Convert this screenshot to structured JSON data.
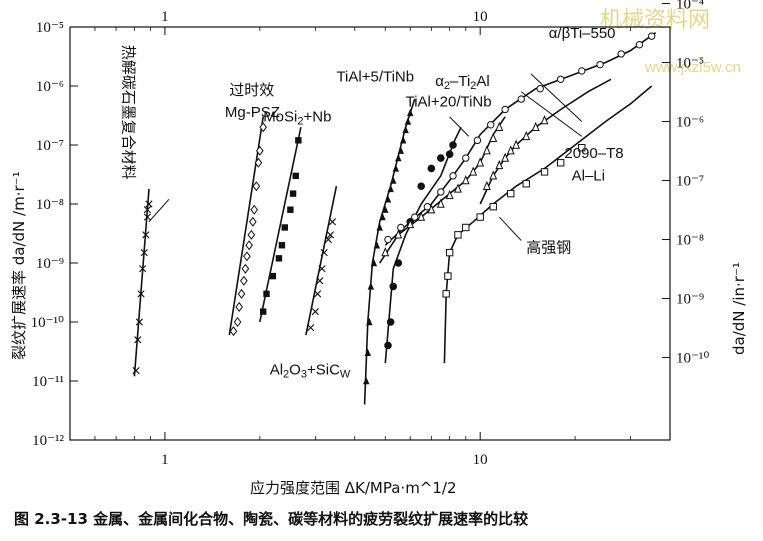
{
  "caption": {
    "number": "图 2.3-13",
    "text": "金属、金属间化合物、陶瓷、碳等材料的疲劳裂纹扩展速率的比较"
  },
  "watermark": {
    "line1": "机械资料网",
    "line2": "www.jxzl5w.cn"
  },
  "chart_data": {
    "type": "scatter",
    "xscale": "log",
    "yscale": "log",
    "xlim": [
      0.5,
      40
    ],
    "ylim": [
      1e-12,
      1e-05
    ],
    "xlabel": "应力强度范围 ΔK/MPa·m^1/2",
    "ylabel": "裂纹扩展速率 da/dN /m·r⁻¹",
    "ylabel_right": "da/dN /in·r⁻¹",
    "x_ticks_bottom": [
      {
        "v": 1,
        "label": "1"
      },
      {
        "v": 10,
        "label": "10"
      }
    ],
    "x_ticks_top": [
      {
        "v": 1,
        "label": "1"
      },
      {
        "v": 10,
        "label": "10"
      }
    ],
    "y_ticks_left": [
      {
        "v": 1e-12,
        "label": "10⁻¹²"
      },
      {
        "v": 1e-11,
        "label": "10⁻¹¹"
      },
      {
        "v": 1e-10,
        "label": "10⁻¹⁰"
      },
      {
        "v": 1e-09,
        "label": "10⁻⁹"
      },
      {
        "v": 1e-08,
        "label": "10⁻⁸"
      },
      {
        "v": 1e-07,
        "label": "10⁻⁷"
      },
      {
        "v": 1e-06,
        "label": "10⁻⁶"
      },
      {
        "v": 1e-05,
        "label": "10⁻⁵"
      }
    ],
    "y_ticks_right": [
      {
        "v": 2.5e-05,
        "label": "10⁻⁴"
      },
      {
        "v": 2.5e-06,
        "label": "10⁻⁵"
      },
      {
        "v": 2.5e-07,
        "label": "10⁻⁶"
      },
      {
        "v": 2.5e-08,
        "label": "10⁻⁷"
      },
      {
        "v": 2.5e-09,
        "label": "10⁻⁸"
      },
      {
        "v": 2.5e-10,
        "label": "10⁻⁹"
      },
      {
        "v": 2.5e-11,
        "label": "10⁻¹⁰"
      }
    ],
    "series": [
      {
        "name": "热解碳石墨复合材料",
        "marker": "x",
        "line": [
          [
            0.8,
            1.2e-11
          ],
          [
            0.89,
            1.8e-08
          ]
        ],
        "points": [
          [
            0.81,
            1.5e-11
          ],
          [
            0.82,
            5e-11
          ],
          [
            0.83,
            1e-10
          ],
          [
            0.84,
            3e-10
          ],
          [
            0.85,
            8e-10
          ],
          [
            0.86,
            1.5e-09
          ],
          [
            0.87,
            3e-09
          ],
          [
            0.88,
            6e-09
          ],
          [
            0.88,
            8e-09
          ],
          [
            0.89,
            1e-08
          ]
        ]
      },
      {
        "name": "过时效 Mg-PSZ",
        "marker": "diamond",
        "line": [
          [
            1.6,
            6e-11
          ],
          [
            2.05,
            3e-07
          ]
        ],
        "points": [
          [
            1.65,
            7e-11
          ],
          [
            1.7,
            1e-10
          ],
          [
            1.72,
            1.8e-10
          ],
          [
            1.75,
            3e-10
          ],
          [
            1.78,
            5e-10
          ],
          [
            1.8,
            8e-10
          ],
          [
            1.82,
            1.3e-09
          ],
          [
            1.85,
            2e-09
          ],
          [
            1.88,
            3e-09
          ],
          [
            1.9,
            5e-09
          ],
          [
            1.92,
            8e-09
          ],
          [
            1.95,
            2e-08
          ],
          [
            1.98,
            5e-08
          ],
          [
            2.0,
            8e-08
          ],
          [
            2.05,
            2e-07
          ]
        ]
      },
      {
        "name": "MoSi2+Nb",
        "marker": "square-filled",
        "line": [
          [
            2.0,
            1e-10
          ],
          [
            2.7,
            2e-07
          ]
        ],
        "points": [
          [
            2.05,
            1.5e-10
          ],
          [
            2.1,
            3e-10
          ],
          [
            2.2,
            6e-10
          ],
          [
            2.3,
            1.2e-09
          ],
          [
            2.35,
            2e-09
          ],
          [
            2.4,
            4e-09
          ],
          [
            2.5,
            8e-09
          ],
          [
            2.55,
            1.5e-08
          ],
          [
            2.6,
            3e-08
          ],
          [
            2.65,
            1.2e-07
          ]
        ]
      },
      {
        "name": "Al2O3+SiCW",
        "marker": "x",
        "line": [
          [
            2.8,
            6e-11
          ],
          [
            3.5,
            2e-08
          ]
        ],
        "points": [
          [
            2.9,
            8e-11
          ],
          [
            3.0,
            1.5e-10
          ],
          [
            3.05,
            3e-10
          ],
          [
            3.1,
            5e-10
          ],
          [
            3.15,
            8e-10
          ],
          [
            3.2,
            1.5e-09
          ],
          [
            3.3,
            2.5e-09
          ],
          [
            3.35,
            3e-09
          ],
          [
            3.4,
            5e-09
          ]
        ]
      },
      {
        "name": "TiAl+5/TiNb",
        "marker": "triangle-filled",
        "line": [
          [
            4.3,
            4e-12
          ],
          [
            4.4,
            1e-10
          ],
          [
            4.55,
            1e-09
          ],
          [
            4.8,
            5e-09
          ],
          [
            5.2,
            2e-08
          ],
          [
            5.8,
            2e-07
          ],
          [
            6.2,
            6e-07
          ]
        ],
        "points": [
          [
            4.35,
            1e-11
          ],
          [
            4.4,
            3e-11
          ],
          [
            4.45,
            1e-10
          ],
          [
            4.5,
            4e-10
          ],
          [
            4.6,
            1e-09
          ],
          [
            4.7,
            2e-09
          ],
          [
            4.8,
            4e-09
          ],
          [
            4.9,
            6e-09
          ],
          [
            5.0,
            8e-09
          ],
          [
            5.1,
            1.2e-08
          ],
          [
            5.2,
            1.8e-08
          ],
          [
            5.3,
            2.5e-08
          ],
          [
            5.4,
            4e-08
          ],
          [
            5.5,
            6e-08
          ],
          [
            5.6,
            8e-08
          ],
          [
            5.7,
            1.2e-07
          ],
          [
            5.8,
            1.8e-07
          ],
          [
            5.9,
            2.5e-07
          ],
          [
            6.0,
            3.5e-07
          ]
        ]
      },
      {
        "name": "TiAl+20/TiNb",
        "marker": "circle-filled",
        "line": [
          [
            5.0,
            2e-11
          ],
          [
            5.3,
            8e-10
          ],
          [
            5.8,
            3e-09
          ],
          [
            6.5,
            1e-08
          ],
          [
            7.5,
            3e-08
          ],
          [
            8.3,
            1.2e-07
          ],
          [
            8.7,
            2e-07
          ]
        ],
        "points": [
          [
            5.1,
            4e-11
          ],
          [
            5.2,
            1e-10
          ],
          [
            5.3,
            4e-10
          ],
          [
            5.5,
            1e-09
          ],
          [
            6.0,
            5e-09
          ],
          [
            6.5,
            2e-08
          ],
          [
            7.0,
            4e-08
          ],
          [
            7.5,
            6e-08
          ],
          [
            8.0,
            7e-08
          ],
          [
            8.2,
            1e-07
          ]
        ]
      },
      {
        "name": "α2-Ti2Al",
        "marker": "triangle-open",
        "line": [
          [
            4.8,
            1e-09
          ],
          [
            5.5,
            3e-09
          ],
          [
            6.5,
            6e-09
          ],
          [
            8.0,
            1.5e-08
          ],
          [
            9.0,
            2.5e-08
          ],
          [
            10.0,
            5e-08
          ],
          [
            11.0,
            1.5e-07
          ],
          [
            12.0,
            3e-07
          ]
        ],
        "points": [
          [
            5.0,
            1.5e-09
          ],
          [
            5.5,
            3e-09
          ],
          [
            6.0,
            4.5e-09
          ],
          [
            6.5,
            6e-09
          ],
          [
            7.0,
            8e-09
          ],
          [
            7.5,
            1e-08
          ],
          [
            8.0,
            1.4e-08
          ],
          [
            8.5,
            1.8e-08
          ],
          [
            9.0,
            2.5e-08
          ],
          [
            9.5,
            3.5e-08
          ],
          [
            10.0,
            5e-08
          ],
          [
            10.5,
            8e-08
          ],
          [
            11.0,
            1.3e-07
          ],
          [
            11.5,
            2e-07
          ]
        ]
      },
      {
        "name": "α/βTi-550",
        "marker": "circle-open",
        "line": [
          [
            5.0,
            2e-09
          ],
          [
            6.0,
            5e-09
          ],
          [
            7.0,
            1e-08
          ],
          [
            8.0,
            2.5e-08
          ],
          [
            9.0,
            6e-08
          ],
          [
            10.0,
            1.5e-07
          ],
          [
            12.0,
            4e-07
          ],
          [
            15.0,
            9e-07
          ],
          [
            20.0,
            1.6e-06
          ],
          [
            25.0,
            2.5e-06
          ],
          [
            30.0,
            4e-06
          ],
          [
            36.0,
            8e-06
          ]
        ],
        "points": [
          [
            5.1,
            2.5e-09
          ],
          [
            5.6,
            4e-09
          ],
          [
            6.2,
            6e-09
          ],
          [
            6.8,
            9e-09
          ],
          [
            7.5,
            1.6e-08
          ],
          [
            8.2,
            3e-08
          ],
          [
            9.0,
            6e-08
          ],
          [
            9.8,
            1.2e-07
          ],
          [
            10.8,
            2.2e-07
          ],
          [
            12.0,
            4e-07
          ],
          [
            13.5,
            6e-07
          ],
          [
            15.5,
            9e-07
          ],
          [
            18.0,
            1.3e-06
          ],
          [
            21.0,
            1.8e-06
          ],
          [
            24.0,
            2.3e-06
          ],
          [
            28.0,
            3.5e-06
          ],
          [
            32.0,
            5e-06
          ],
          [
            35.0,
            7e-06
          ]
        ]
      },
      {
        "name": "2090-T8 Al-Li",
        "marker": "triangle-open",
        "line": [
          [
            10.0,
            1e-08
          ],
          [
            11.0,
            3e-08
          ],
          [
            12.0,
            6e-08
          ],
          [
            13.0,
            1e-07
          ],
          [
            15.0,
            2e-07
          ],
          [
            18.0,
            4e-07
          ],
          [
            22.0,
            8e-07
          ],
          [
            26.0,
            1.3e-06
          ]
        ],
        "points": [
          [
            10.5,
            2e-08
          ],
          [
            11.0,
            3e-08
          ],
          [
            11.5,
            4.5e-08
          ],
          [
            12.0,
            6e-08
          ],
          [
            12.5,
            8e-08
          ],
          [
            13.0,
            1e-07
          ],
          [
            14.0,
            1.4e-07
          ],
          [
            15.0,
            2e-07
          ],
          [
            16.0,
            2.6e-07
          ]
        ]
      },
      {
        "name": "高强钢",
        "marker": "square-open",
        "line": [
          [
            7.7,
            2e-11
          ],
          [
            7.8,
            3e-10
          ],
          [
            8.0,
            1.5e-09
          ],
          [
            8.5,
            3e-09
          ],
          [
            9.5,
            5e-09
          ],
          [
            11.0,
            1e-08
          ],
          [
            13.0,
            2e-08
          ],
          [
            16.0,
            4e-08
          ],
          [
            20.0,
            1e-07
          ],
          [
            25.0,
            2.5e-07
          ],
          [
            30.0,
            5e-07
          ],
          [
            35.0,
            1e-06
          ]
        ],
        "points": [
          [
            7.8,
            3e-10
          ],
          [
            7.9,
            6e-10
          ],
          [
            8.0,
            1.5e-09
          ],
          [
            8.5,
            3e-09
          ],
          [
            9.0,
            4e-09
          ],
          [
            10.0,
            6e-09
          ],
          [
            11.0,
            9e-09
          ],
          [
            12.5,
            1.5e-08
          ],
          [
            14.0,
            2.2e-08
          ],
          [
            16.0,
            3.5e-08
          ],
          [
            18.0,
            5e-08
          ],
          [
            21.0,
            9e-08
          ]
        ]
      }
    ],
    "annotations": [
      {
        "text": "热解碳石墨复合材料",
        "orientation": "vertical",
        "x": 0.74,
        "y": 5e-06
      },
      {
        "text": "过时效",
        "x": 1.6,
        "y": 7e-07
      },
      {
        "text": "Mg-PSZ",
        "x": 1.55,
        "y": 3e-07
      },
      {
        "text": "MoSi",
        "sub": "2",
        "tail": "+Nb",
        "x": 2.05,
        "y": 2.5e-07
      },
      {
        "text": "Al",
        "sub": "2",
        "mid": "O",
        "sub2": "3",
        "tail": "+SiC",
        "sub3": "W",
        "x": 2.15,
        "y": 1.3e-11
      },
      {
        "text": "TiAl+5/TiNb",
        "x": 3.5,
        "y": 1.2e-06
      },
      {
        "text": "TiAl+20/TiNb",
        "x": 5.8,
        "y": 4.5e-07
      },
      {
        "text": "α",
        "sub": "2",
        "tail": "–Ti",
        "sub2": "2",
        "tail2": "Al",
        "x": 7.2,
        "y": 1e-06
      },
      {
        "text": "α/βTi–550",
        "x": 16.5,
        "y": 6.5e-06
      },
      {
        "text": "2090–T8",
        "x": 18.5,
        "y": 6e-08
      },
      {
        "text": "Al–Li",
        "x": 19.5,
        "y": 2.5e-08
      },
      {
        "text": "高强钢",
        "x": 14.0,
        "y": 1.5e-09
      }
    ],
    "leaders": [
      {
        "from": [
          1.03,
          1.2e-08
        ],
        "to": [
          0.89,
          5e-09
        ]
      },
      {
        "from": [
          9.2,
          1.4e-07
        ],
        "to": [
          8.0,
          3e-07
        ]
      },
      {
        "from": [
          21.0,
          2.5e-07
        ],
        "to": [
          14.5,
          1.6e-06
        ]
      },
      {
        "from": [
          21.0,
          1.4e-07
        ],
        "to": [
          13.5,
          8e-07
        ]
      },
      {
        "from": [
          13.5,
          2.4e-09
        ],
        "to": [
          11.5,
          6e-09
        ]
      }
    ]
  }
}
